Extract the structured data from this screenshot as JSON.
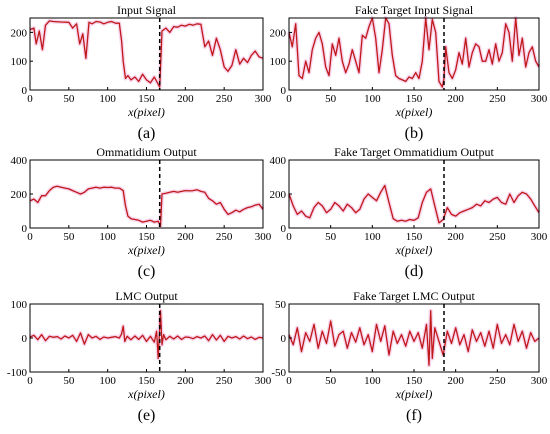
{
  "colors": {
    "signal": "#c0181b",
    "halo": "#f2b8de",
    "target_marker": "#000000"
  },
  "chart_data": [
    {
      "type": "line",
      "title": "Input Signal",
      "panel_label": "(a)",
      "xlabel": "x(pixel)",
      "xlim": [
        0,
        300
      ],
      "ylim": [
        0,
        250
      ],
      "xticks": [
        "0",
        "50",
        "100",
        "150",
        "200",
        "250",
        "300"
      ],
      "yticks": [
        "0",
        "100",
        "200"
      ],
      "target_x": 167,
      "series": [
        {
          "x": [
            0,
            5,
            8,
            12,
            16,
            20,
            25,
            30,
            40,
            50,
            55,
            60,
            64,
            68,
            72,
            76,
            80,
            85,
            90,
            95,
            100,
            105,
            110,
            115,
            118,
            120,
            123,
            126,
            130,
            135,
            140,
            145,
            150,
            155,
            160,
            165,
            167,
            170,
            175,
            180,
            185,
            190,
            195,
            200,
            205,
            210,
            215,
            220,
            225,
            230,
            235,
            240,
            245,
            250,
            255,
            260,
            265,
            270,
            275,
            280,
            285,
            290,
            295,
            300
          ],
          "y": [
            210,
            215,
            160,
            205,
            140,
            225,
            240,
            238,
            236,
            235,
            215,
            230,
            160,
            195,
            110,
            235,
            230,
            238,
            236,
            230,
            235,
            238,
            232,
            232,
            170,
            100,
            40,
            50,
            35,
            45,
            30,
            55,
            35,
            25,
            45,
            20,
            10,
            205,
            215,
            200,
            220,
            218,
            225,
            222,
            228,
            225,
            230,
            228,
            150,
            170,
            120,
            180,
            140,
            80,
            65,
            85,
            140,
            90,
            110,
            95,
            120,
            135,
            115,
            110
          ]
        }
      ]
    },
    {
      "type": "line",
      "title": "Fake Target Input Signal",
      "panel_label": "(b)",
      "xlabel": "x(pixel)",
      "xlim": [
        0,
        300
      ],
      "ylim": [
        0,
        250
      ],
      "xticks": [
        "0",
        "50",
        "100",
        "150",
        "200",
        "250",
        "300"
      ],
      "yticks": [
        "0",
        "100",
        "200"
      ],
      "target_x": 186,
      "series": [
        {
          "x": [
            0,
            4,
            8,
            12,
            16,
            20,
            24,
            28,
            32,
            36,
            40,
            44,
            48,
            52,
            56,
            60,
            64,
            68,
            72,
            76,
            80,
            84,
            88,
            92,
            96,
            100,
            104,
            108,
            112,
            116,
            120,
            124,
            128,
            132,
            136,
            140,
            144,
            148,
            152,
            156,
            160,
            164,
            168,
            172,
            176,
            180,
            184,
            186,
            188,
            192,
            196,
            200,
            204,
            208,
            212,
            216,
            220,
            224,
            228,
            232,
            236,
            240,
            244,
            248,
            252,
            256,
            260,
            264,
            268,
            272,
            276,
            280,
            284,
            288,
            292,
            296,
            300
          ],
          "y": [
            200,
            150,
            230,
            50,
            40,
            100,
            60,
            140,
            180,
            200,
            160,
            80,
            50,
            160,
            120,
            180,
            100,
            60,
            90,
            140,
            100,
            60,
            190,
            180,
            220,
            250,
            180,
            60,
            140,
            250,
            230,
            120,
            50,
            40,
            35,
            30,
            45,
            40,
            60,
            40,
            100,
            250,
            140,
            245,
            200,
            30,
            10,
            40,
            150,
            60,
            40,
            70,
            130,
            90,
            180,
            80,
            130,
            160,
            150,
            100,
            100,
            140,
            90,
            160,
            100,
            130,
            230,
            200,
            100,
            250,
            120,
            180,
            80,
            130,
            150,
            100,
            80
          ]
        }
      ]
    },
    {
      "type": "line",
      "title": "Ommatidium Output",
      "panel_label": "(c)",
      "xlabel": "x(pixel)",
      "xlim": [
        0,
        300
      ],
      "ylim": [
        0,
        400
      ],
      "xticks": [
        "0",
        "50",
        "100",
        "150",
        "200",
        "250",
        "300"
      ],
      "yticks": [
        "0",
        "200",
        "400"
      ],
      "target_x": 167,
      "series": [
        {
          "x": [
            0,
            5,
            10,
            15,
            20,
            25,
            30,
            35,
            40,
            45,
            50,
            55,
            60,
            65,
            70,
            75,
            80,
            85,
            90,
            95,
            100,
            105,
            110,
            115,
            120,
            123,
            126,
            130,
            135,
            140,
            145,
            150,
            155,
            160,
            165,
            168,
            170,
            175,
            180,
            185,
            190,
            195,
            200,
            205,
            210,
            215,
            220,
            225,
            230,
            235,
            240,
            245,
            250,
            255,
            260,
            265,
            270,
            275,
            280,
            285,
            290,
            295,
            300
          ],
          "y": [
            160,
            170,
            150,
            190,
            190,
            220,
            240,
            245,
            240,
            235,
            230,
            220,
            210,
            200,
            210,
            230,
            235,
            240,
            235,
            240,
            238,
            240,
            235,
            235,
            220,
            130,
            70,
            55,
            50,
            45,
            35,
            40,
            45,
            35,
            40,
            10,
            200,
            205,
            210,
            215,
            210,
            215,
            220,
            218,
            220,
            225,
            215,
            210,
            175,
            160,
            140,
            150,
            110,
            80,
            90,
            105,
            95,
            110,
            120,
            125,
            135,
            140,
            110
          ]
        }
      ]
    },
    {
      "type": "line",
      "title": "Fake Target Ommatidium Output",
      "panel_label": "(d)",
      "xlabel": "x(pixel)",
      "xlim": [
        0,
        300
      ],
      "ylim": [
        0,
        400
      ],
      "xticks": [
        "0",
        "50",
        "100",
        "150",
        "200",
        "250",
        "300"
      ],
      "yticks": [
        "0",
        "200",
        "400"
      ],
      "target_x": 186,
      "series": [
        {
          "x": [
            0,
            5,
            10,
            15,
            20,
            25,
            30,
            35,
            40,
            45,
            50,
            55,
            60,
            65,
            70,
            75,
            80,
            85,
            90,
            95,
            100,
            105,
            110,
            115,
            120,
            125,
            130,
            135,
            140,
            145,
            150,
            155,
            160,
            165,
            170,
            175,
            180,
            185,
            190,
            195,
            200,
            205,
            210,
            215,
            220,
            225,
            230,
            235,
            240,
            245,
            250,
            255,
            260,
            265,
            270,
            275,
            280,
            285,
            290,
            295,
            300
          ],
          "y": [
            200,
            130,
            80,
            100,
            70,
            60,
            120,
            150,
            130,
            90,
            110,
            150,
            130,
            100,
            140,
            120,
            90,
            110,
            170,
            200,
            180,
            160,
            210,
            250,
            150,
            55,
            40,
            45,
            40,
            50,
            45,
            60,
            150,
            210,
            230,
            130,
            30,
            50,
            120,
            80,
            70,
            90,
            100,
            110,
            120,
            140,
            130,
            160,
            150,
            170,
            180,
            150,
            140,
            200,
            150,
            190,
            210,
            200,
            170,
            130,
            90
          ]
        }
      ]
    },
    {
      "type": "line",
      "title": "LMC Output",
      "panel_label": "(e)",
      "xlabel": "x(pixel)",
      "xlim": [
        0,
        300
      ],
      "ylim": [
        -100,
        100
      ],
      "xticks": [
        "0",
        "50",
        "100",
        "150",
        "200",
        "250",
        "300"
      ],
      "yticks": [
        "-100",
        "0",
        "100"
      ],
      "target_x": 167,
      "series": [
        {
          "x": [
            0,
            5,
            10,
            15,
            20,
            25,
            30,
            35,
            40,
            45,
            50,
            55,
            60,
            65,
            70,
            75,
            80,
            85,
            90,
            95,
            100,
            105,
            110,
            115,
            118,
            120,
            122,
            125,
            130,
            135,
            140,
            145,
            150,
            155,
            160,
            163,
            165,
            168,
            170,
            172,
            175,
            180,
            185,
            190,
            195,
            200,
            205,
            210,
            215,
            220,
            225,
            230,
            235,
            240,
            245,
            250,
            255,
            260,
            265,
            270,
            275,
            280,
            285,
            290,
            295,
            300
          ],
          "y": [
            3,
            8,
            -5,
            10,
            -8,
            5,
            2,
            4,
            -3,
            6,
            0,
            8,
            -10,
            15,
            -18,
            10,
            0,
            5,
            -4,
            3,
            0,
            2,
            4,
            0,
            12,
            35,
            -10,
            5,
            -5,
            6,
            -4,
            8,
            -10,
            5,
            -12,
            20,
            -60,
            80,
            -20,
            10,
            -5,
            5,
            -3,
            6,
            -4,
            3,
            2,
            -2,
            4,
            0,
            6,
            -8,
            10,
            -6,
            8,
            -10,
            5,
            0,
            4,
            -3,
            6,
            -2,
            3,
            -4,
            2,
            0
          ]
        }
      ]
    },
    {
      "type": "line",
      "title": "Fake Target LMC Output",
      "panel_label": "(f)",
      "xlabel": "x(pixel)",
      "xlim": [
        0,
        300
      ],
      "ylim": [
        -50,
        50
      ],
      "xticks": [
        "0",
        "50",
        "100",
        "150",
        "200",
        "250",
        "300"
      ],
      "yticks": [
        "-50",
        "0",
        "50"
      ],
      "target_x": 186,
      "series": [
        {
          "x": [
            0,
            5,
            10,
            15,
            20,
            25,
            30,
            35,
            40,
            45,
            50,
            55,
            60,
            65,
            70,
            75,
            80,
            85,
            90,
            95,
            100,
            105,
            110,
            115,
            120,
            125,
            130,
            135,
            140,
            145,
            150,
            155,
            160,
            165,
            168,
            170,
            172,
            175,
            180,
            185,
            190,
            195,
            200,
            205,
            210,
            215,
            220,
            225,
            230,
            235,
            240,
            245,
            250,
            255,
            260,
            265,
            270,
            275,
            280,
            285,
            290,
            295,
            300
          ],
          "y": [
            5,
            -10,
            15,
            -20,
            8,
            -5,
            20,
            -15,
            10,
            -8,
            25,
            -12,
            5,
            10,
            -15,
            8,
            -6,
            15,
            -10,
            5,
            -20,
            20,
            -5,
            18,
            -25,
            10,
            -8,
            5,
            -12,
            10,
            -5,
            8,
            -15,
            20,
            -40,
            40,
            -30,
            15,
            -5,
            -25,
            10,
            -8,
            15,
            -10,
            5,
            -20,
            12,
            -5,
            8,
            -12,
            10,
            -15,
            20,
            -8,
            5,
            -10,
            20,
            -5,
            10,
            -15,
            8,
            -5,
            0
          ]
        }
      ]
    }
  ]
}
